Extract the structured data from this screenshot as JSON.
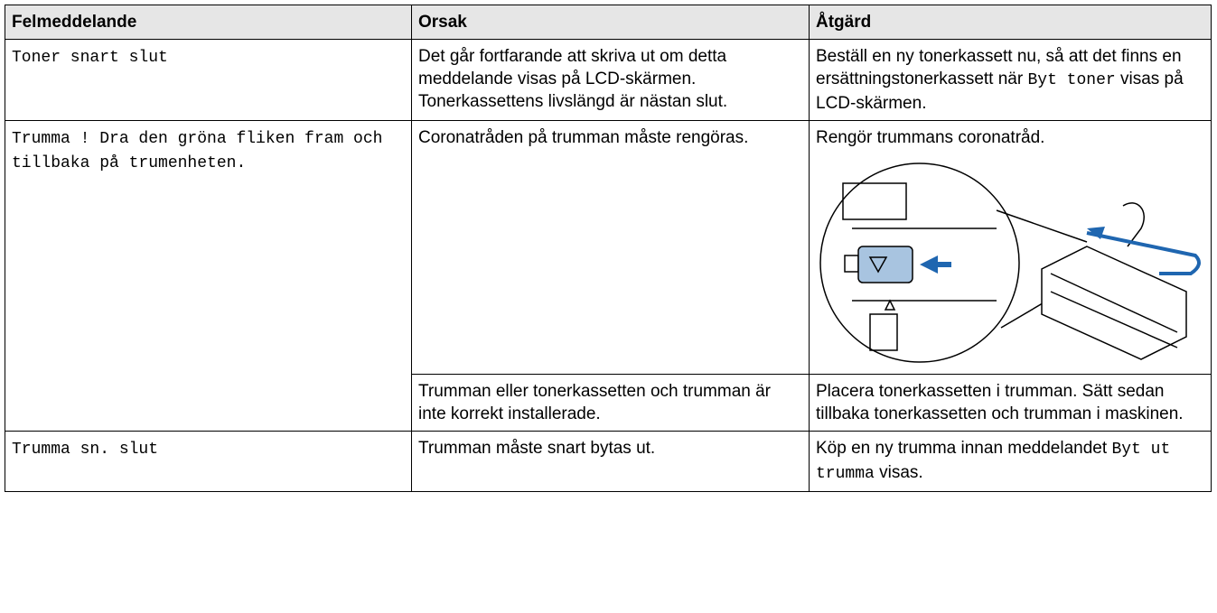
{
  "table": {
    "header": [
      "Felmeddelande",
      "Orsak",
      "Åtgärd"
    ],
    "rows": [
      {
        "message": "Toner snart slut",
        "causes": [
          {
            "cause": "Det går fortfarande att skriva ut om detta meddelande visas på LCD-skärmen. Tonerkassettens livslängd är nästan slut.",
            "action": {
              "before": "Beställ en ny tonerkassett nu, så att det finns en ersättningstonerkassett när ",
              "code": "Byt toner",
              "after": " visas på LCD-skärmen."
            }
          }
        ]
      },
      {
        "message": "Trumma ! Dra den gröna fliken fram och tillbaka på trumenheten.",
        "causes": [
          {
            "cause": "Coronatråden på trumman måste rengöras.",
            "action": {
              "before": "Rengör trummans coronatråd."
            }
          },
          {
            "cause": "Trumman eller tonerkassetten och trumman är inte korrekt installerade.",
            "action": {
              "before": "Placera tonerkassetten i trumman. Sätt sedan tillbaka tonerkassetten och trumman i maskinen."
            }
          }
        ]
      },
      {
        "message": "Trumma sn. slut",
        "causes": [
          {
            "cause": "Trumman måste snart bytas ut.",
            "action": {
              "before": "Köp en ny trumma innan meddelandet ",
              "code": "Byt ut trumma",
              "after": " visas."
            }
          }
        ]
      }
    ]
  }
}
